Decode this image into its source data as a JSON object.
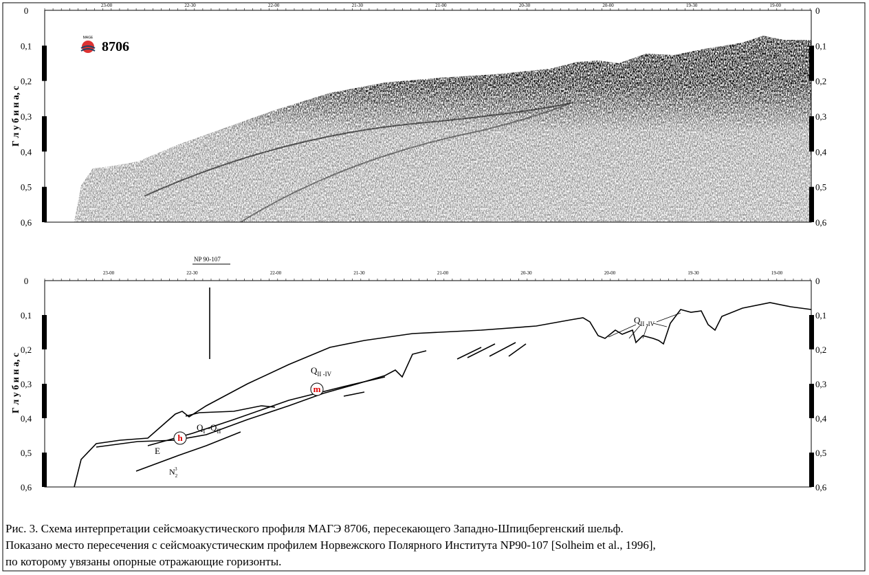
{
  "figure": {
    "logo": {
      "caption": "MAGE",
      "number": "8706"
    },
    "axis_title": "Г л у б и н а, с",
    "depth_ticks": [
      "0",
      "0,1",
      "0,2",
      "0,3",
      "0,4",
      "0,5",
      "0,6"
    ],
    "upper_time_ticks": [
      "23-00",
      "22-30",
      "22-00",
      "21-30",
      "21-00",
      "20-30",
      "20-00",
      "19-30",
      "19-00"
    ],
    "lower_time_ticks": [
      "23-00",
      "22-30",
      "22-00",
      "21-30",
      "21-00",
      "20-30",
      "20-00",
      "19-30",
      "19-00"
    ],
    "crossing": "NP 90-107",
    "units": [
      {
        "main": "Q",
        "sub": "II -IV"
      },
      {
        "main": "Q",
        "sub": "II -IV"
      },
      {
        "main": "Q",
        "sub": "I",
        "rest": " -Q",
        "sub2": "II"
      },
      {
        "main": "E"
      },
      {
        "main": "N",
        "sub": "2",
        "sup": "3"
      }
    ],
    "horizons": [
      "m",
      "h"
    ],
    "caption": [
      "Рис.   3. Схема интерпретации сейсмоакустического профиля МАГЭ 8706, пересекающего Западно-Шпицбергенский шельф.",
      "Показано место пересечения с сейсмоакустическим профилем Норвежского Полярного Института NP90-107 [Solheim et al., 1996],",
      "по которому увязаны опорные отражающие горизонты."
    ]
  }
}
